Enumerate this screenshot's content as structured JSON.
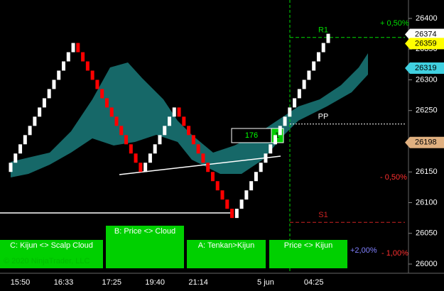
{
  "chart_data": {
    "type": "renko",
    "categories": [
      null,
      null,
      "15:50",
      null,
      null,
      null,
      null,
      null,
      null,
      null,
      null,
      "16:33",
      null,
      null,
      null,
      null,
      null,
      null,
      null,
      null,
      null,
      "17:25",
      null,
      null,
      null,
      null,
      null,
      null,
      null,
      null,
      "19:40",
      null,
      null,
      null,
      null,
      null,
      null,
      null,
      null,
      "21:14",
      null,
      null,
      null,
      null,
      null,
      null,
      null,
      null,
      null,
      null,
      null,
      null,
      null,
      "5 jun",
      null,
      null,
      null,
      null,
      null,
      null,
      null,
      null,
      null,
      "04:25",
      null,
      null,
      null
    ],
    "open": [
      26150,
      26165,
      26180,
      26195,
      26210,
      26225,
      26240,
      26255,
      26270,
      26285,
      26300,
      26315,
      26330,
      26345,
      26360,
      26345,
      26330,
      26315,
      26300,
      26285,
      26270,
      26255,
      26240,
      26225,
      26210,
      26195,
      26180,
      26165,
      26150,
      26165,
      26180,
      26195,
      26210,
      26225,
      26240,
      26255,
      26240,
      26225,
      26210,
      26195,
      26180,
      26165,
      26150,
      26135,
      26120,
      26105,
      26090,
      26075,
      26090,
      26105,
      26120,
      26135,
      26150,
      26165,
      26180,
      26195,
      26210,
      26225,
      26240,
      26255,
      26270,
      26285,
      26300,
      26315,
      26330,
      26345,
      26360
    ],
    "close": [
      26165,
      26180,
      26195,
      26210,
      26225,
      26240,
      26255,
      26270,
      26285,
      26300,
      26315,
      26330,
      26345,
      26360,
      26345,
      26330,
      26315,
      26300,
      26285,
      26270,
      26255,
      26240,
      26225,
      26210,
      26195,
      26180,
      26165,
      26150,
      26165,
      26180,
      26195,
      26210,
      26225,
      26240,
      26255,
      26240,
      26225,
      26210,
      26195,
      26180,
      26165,
      26150,
      26135,
      26120,
      26105,
      26090,
      26075,
      26090,
      26105,
      26120,
      26135,
      26150,
      26165,
      26180,
      26195,
      26210,
      26225,
      26240,
      26255,
      26270,
      26285,
      26300,
      26315,
      26330,
      26345,
      26360,
      26375
    ],
    "up_color": "#ffffff",
    "down_color": "#ff0000",
    "ylim": [
      25985,
      26430
    ],
    "yticks": [
      26000,
      26050,
      26100,
      26150,
      26200,
      26250,
      26300,
      26350,
      26400
    ],
    "levels": [
      {
        "name": "R1",
        "value": 26369,
        "color": "#00dd00"
      },
      {
        "name": "PP",
        "value": 26228,
        "color": "#ffffff"
      },
      {
        "name": "S1",
        "value": 26068,
        "color": "#cc2222"
      }
    ],
    "price_markers": [
      {
        "value": 26374,
        "color": "#ffffff"
      },
      {
        "value": 26359,
        "color": "#ffff00"
      },
      {
        "value": 26319,
        "color": "#40d0e0"
      },
      {
        "value": 26198,
        "color": "#e0b080"
      }
    ],
    "percent_labels": [
      "+ 0,50%",
      "- 0,50%",
      "+2,00%",
      "- 1,00%"
    ],
    "counter": [
      "176",
      "1"
    ],
    "buttons": [
      "C: Kijun <> Scalp Cloud",
      "B: Price <> Cloud",
      "A: Tenkan>Kijun",
      "Price <> Kijun"
    ],
    "copyright": "© 2020 NinjaTrader, LLC"
  }
}
